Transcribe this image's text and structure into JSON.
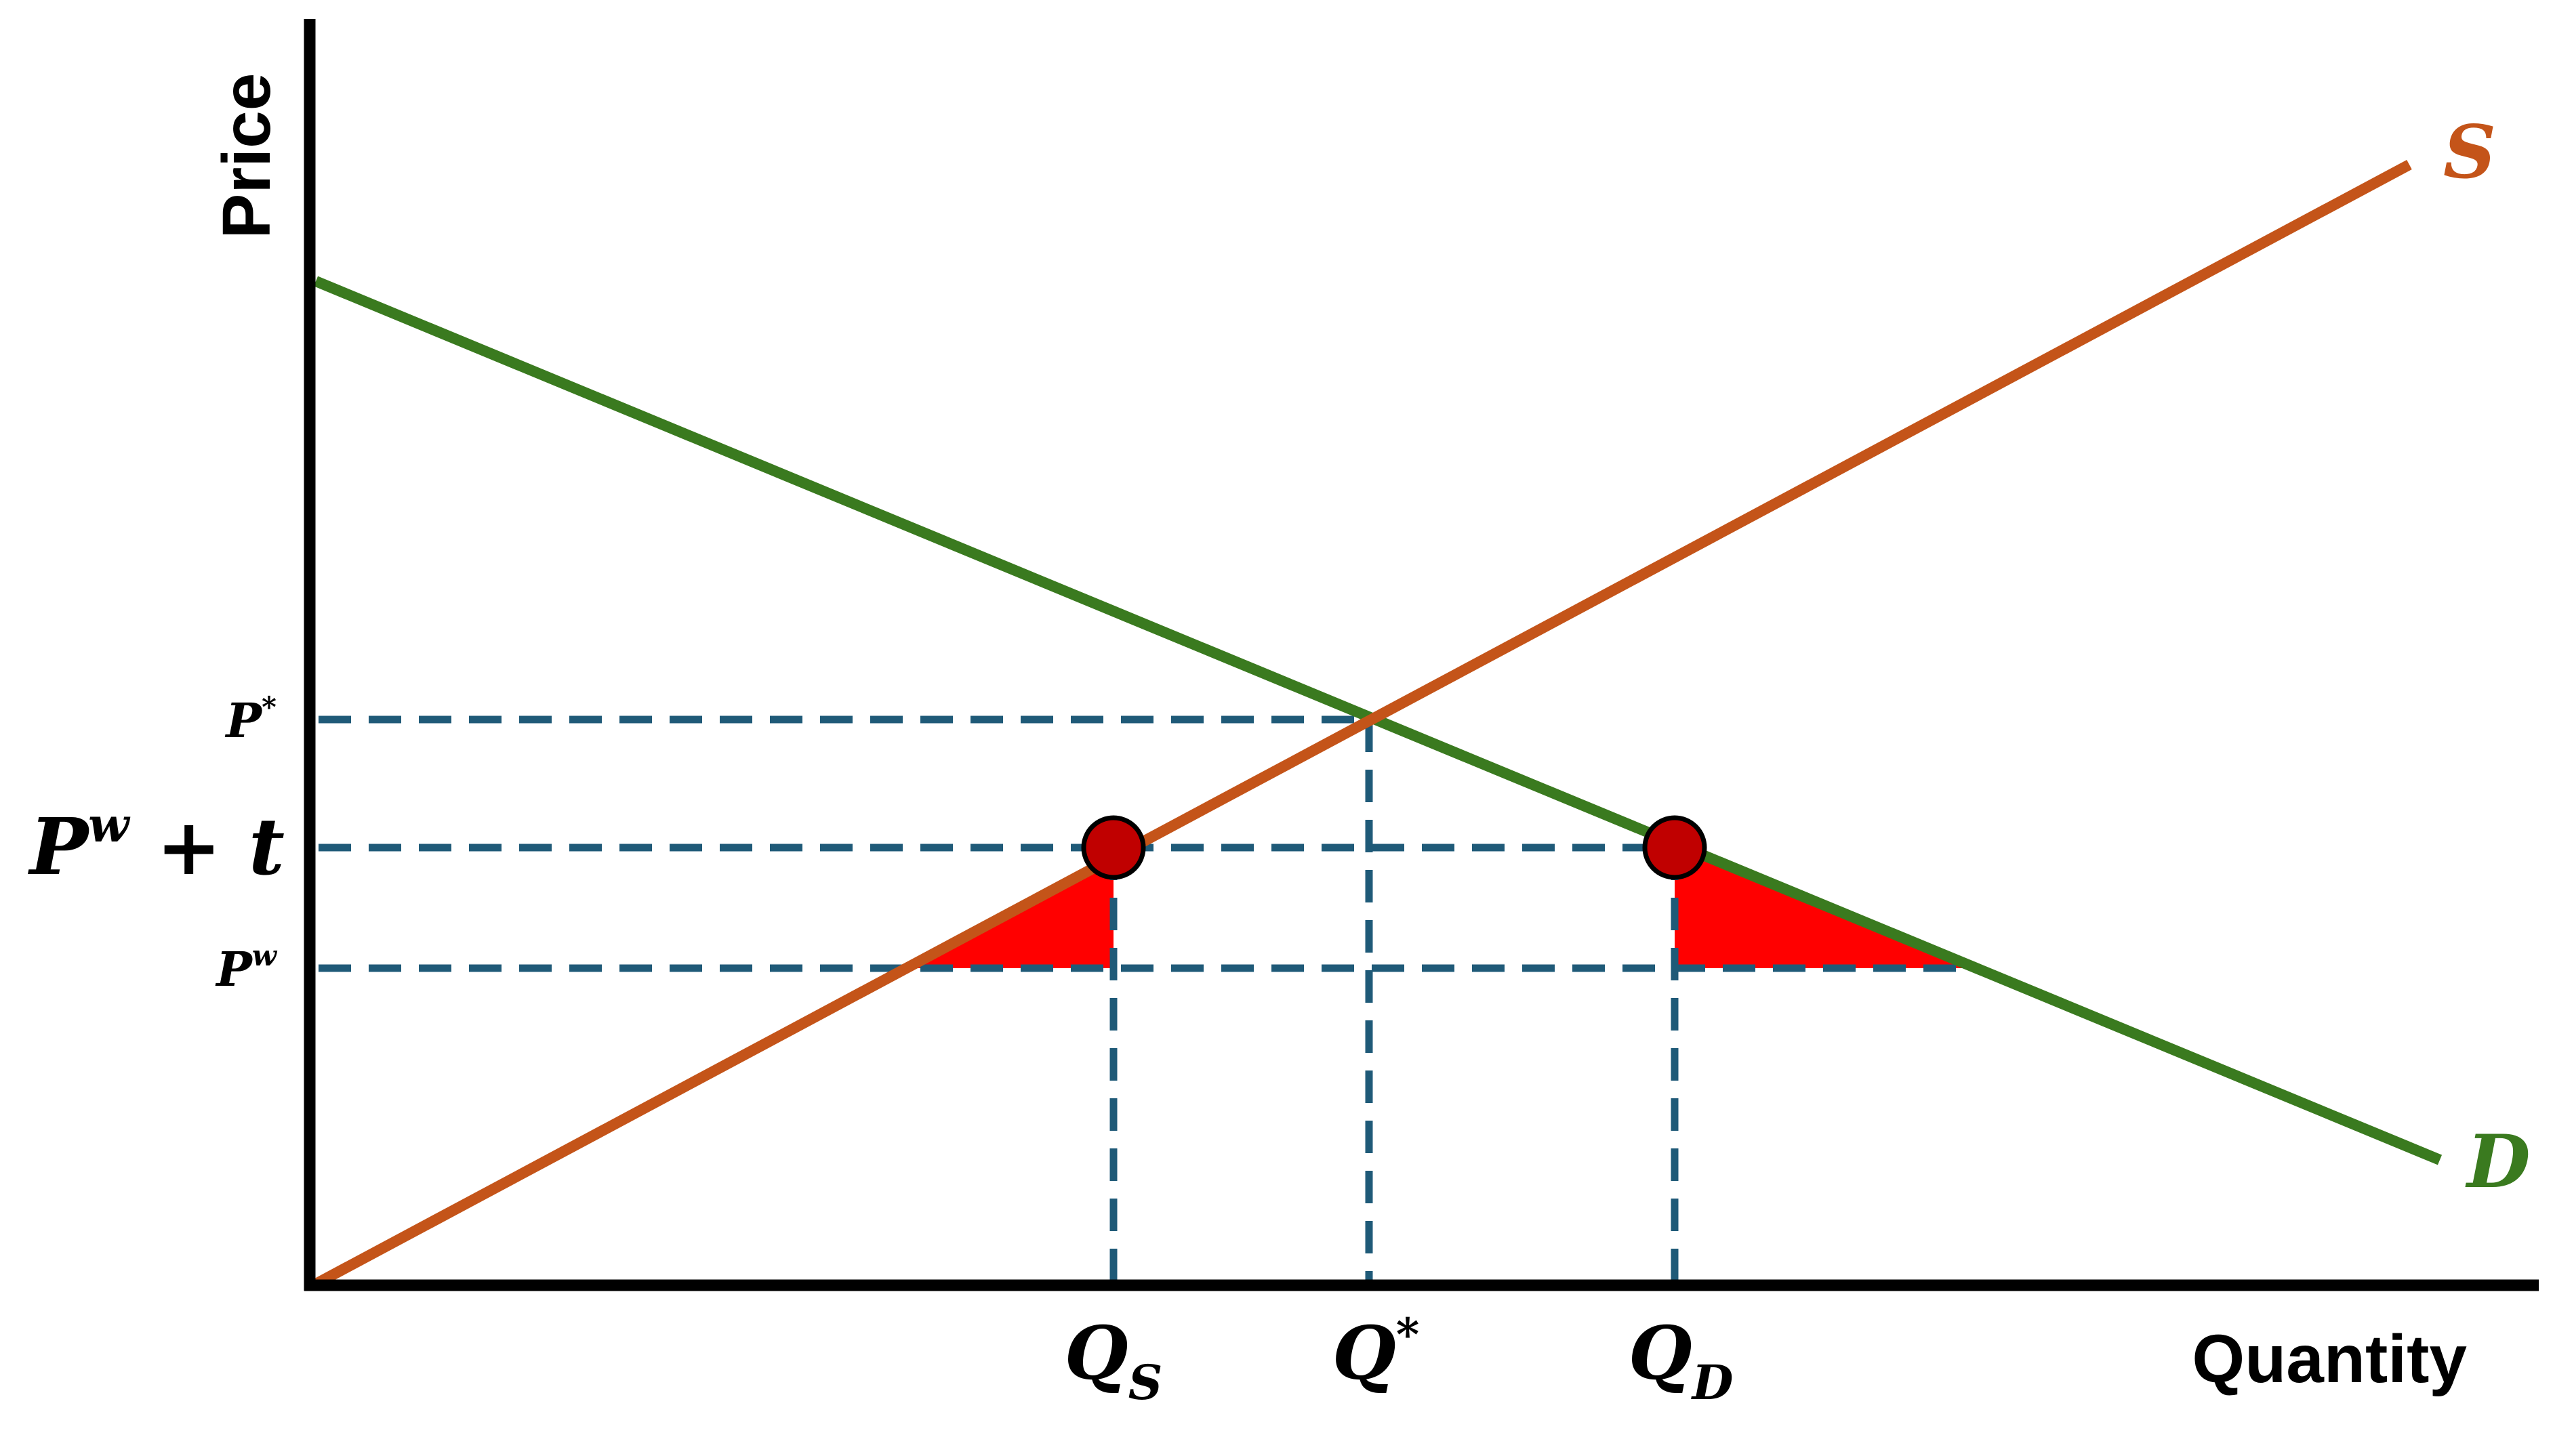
{
  "diagram": {
    "axes": {
      "y_label": "Price",
      "x_label": "Quantity"
    },
    "curves": [
      {
        "id": "supply",
        "label": "S",
        "color": "#C45419"
      },
      {
        "id": "demand",
        "label": "D",
        "color": "#3A7A1F"
      }
    ],
    "price_levels": [
      {
        "id": "p_star",
        "base": "P",
        "sup": "*"
      },
      {
        "id": "p_world_tariff",
        "base": "P",
        "sup": "w",
        "suffix": " + t"
      },
      {
        "id": "p_world",
        "base": "P",
        "sup": "w"
      }
    ],
    "quantity_levels": [
      {
        "id": "q_s",
        "base": "Q",
        "sub": "S"
      },
      {
        "id": "q_star",
        "base": "Q",
        "sup": "*"
      },
      {
        "id": "q_d",
        "base": "Q",
        "sub": "D"
      }
    ],
    "colors": {
      "axis": "#000000",
      "guide_dash": "#1F5A78",
      "deadweight_fill": "#FF0000",
      "point_fill": "#C00000",
      "point_stroke": "#000000"
    }
  }
}
